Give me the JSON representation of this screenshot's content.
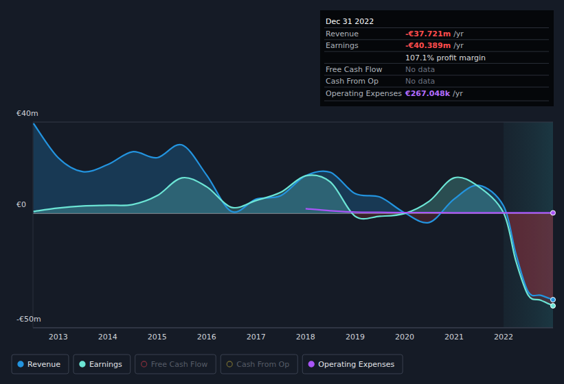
{
  "chart_data": {
    "type": "line",
    "x": [
      2012.5,
      2013,
      2013.5,
      2014,
      2014.5,
      2015,
      2015.5,
      2016,
      2016.5,
      2017,
      2017.5,
      2018,
      2018.5,
      2019,
      2019.5,
      2020,
      2020.5,
      2021,
      2021.5,
      2022,
      2022.25,
      2022.5,
      2022.75,
      2023
    ],
    "xlim": [
      2012.49,
      2023
    ],
    "xticks": [
      2013,
      2014,
      2015,
      2016,
      2017,
      2018,
      2019,
      2020,
      2021,
      2022
    ],
    "ylim": [
      -50,
      40
    ],
    "yticks": [
      {
        "value": 40,
        "label": "€40m"
      },
      {
        "value": 0,
        "label": "€0"
      },
      {
        "value": -50,
        "label": "-€50m"
      }
    ],
    "grid": true,
    "legend": "bottom",
    "series": [
      {
        "name": "Revenue",
        "color": "#2394df",
        "values": [
          39.4,
          24.4,
          18.3,
          21.4,
          27,
          24.4,
          30,
          16.8,
          0.9,
          6.3,
          7.8,
          16.5,
          18,
          8.7,
          7.2,
          0.3,
          -3.9,
          6.3,
          12.3,
          3.3,
          -17.7,
          -34.3,
          -35.8,
          -37.721
        ]
      },
      {
        "name": "Earnings",
        "color": "#6ce5d5",
        "values": [
          0.9,
          2.4,
          3.3,
          3.6,
          3.9,
          7.8,
          15.6,
          11.7,
          2.7,
          5.7,
          9.3,
          16.5,
          13.8,
          -1.2,
          -1.2,
          0,
          5.4,
          15.6,
          11.7,
          0.3,
          -20.8,
          -35.8,
          -37.9,
          -40.389
        ]
      },
      {
        "name": "Free Cash Flow",
        "color": "#7a2d3a",
        "values": [
          null,
          null,
          null,
          null,
          null,
          null,
          null,
          null,
          null,
          null,
          null,
          null,
          null,
          null,
          null,
          null,
          null,
          null,
          null,
          null,
          null,
          null,
          null,
          null
        ]
      },
      {
        "name": "Cash From Op",
        "color": "#6b6430",
        "values": [
          null,
          null,
          null,
          null,
          null,
          null,
          null,
          null,
          null,
          null,
          null,
          null,
          null,
          null,
          null,
          null,
          null,
          null,
          null,
          null,
          null,
          null,
          null,
          null
        ]
      },
      {
        "name": "Operating Expenses",
        "color": "#a855f7",
        "values": [
          null,
          null,
          null,
          null,
          null,
          null,
          null,
          null,
          null,
          null,
          null,
          2.1,
          1.2,
          0.6,
          0.5,
          0.4,
          0.4,
          0.3,
          0.3,
          0.3,
          0.3,
          0.28,
          0.27,
          0.267
        ]
      }
    ],
    "tooltip": {
      "title": "Dec 31 2022",
      "rows": [
        {
          "label": "Revenue",
          "value": "-€37.721m",
          "unit": "/yr",
          "color": "#ff4d4d"
        },
        {
          "label": "Earnings",
          "value": "-€40.389m",
          "unit": "/yr",
          "color": "#ff4d4d"
        },
        {
          "value": "107.1% profit margin",
          "color": "#dddddd"
        },
        {
          "label": "Free Cash Flow",
          "value": "No data",
          "color": "#6b7280"
        },
        {
          "label": "Cash From Op",
          "value": "No data",
          "color": "#6b7280"
        },
        {
          "label": "Operating Expenses",
          "value": "€267.048k",
          "unit": "/yr",
          "color": "#b46cff"
        }
      ]
    }
  }
}
